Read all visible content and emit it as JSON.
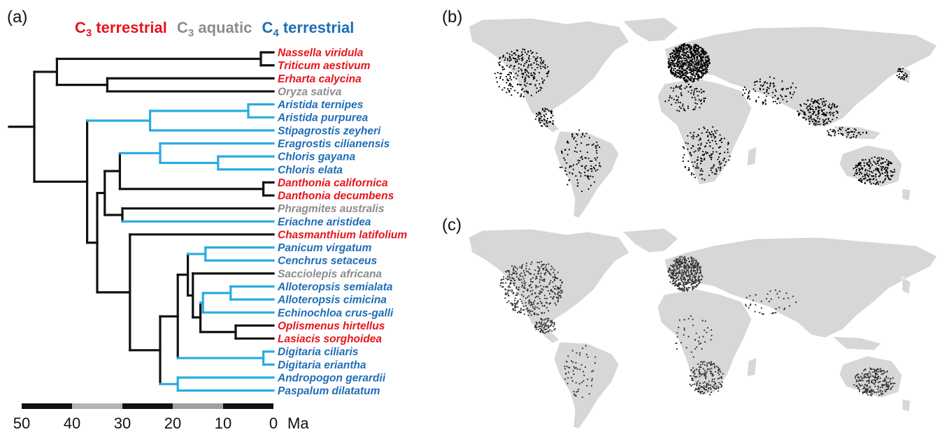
{
  "panels": {
    "a": "(a)",
    "b": "(b)",
    "c": "(c)"
  },
  "legend": {
    "c3_terrestrial": {
      "main": "C",
      "sub": "3",
      "rest": " terrestrial"
    },
    "c3_aquatic": {
      "main": "C",
      "sub": "3",
      "rest": " aquatic"
    },
    "c4_terrestrial": {
      "main": "C",
      "sub": "4",
      "rest": " terrestrial"
    }
  },
  "colors": {
    "c3_terrestrial": "#e8141c",
    "c3_aquatic": "#8c8c8c",
    "c4_terrestrial": "#1f6db7",
    "c4_branch": "#29abe2",
    "branch": "#111111",
    "land": "#d7d7d7",
    "points_b": "#000000",
    "points_c": "#333333"
  },
  "taxa": [
    {
      "name": "Nassella viridula",
      "group": "c3_terrestrial"
    },
    {
      "name": "Triticum aestivum",
      "group": "c3_terrestrial"
    },
    {
      "name": "Erharta calycina",
      "group": "c3_terrestrial"
    },
    {
      "name": "Oryza sativa",
      "group": "c3_aquatic"
    },
    {
      "name": "Aristida ternipes",
      "group": "c4_terrestrial"
    },
    {
      "name": "Aristida purpurea",
      "group": "c4_terrestrial"
    },
    {
      "name": "Stipagrostis zeyheri",
      "group": "c4_terrestrial"
    },
    {
      "name": "Eragrostis cilianensis",
      "group": "c4_terrestrial"
    },
    {
      "name": "Chloris gayana",
      "group": "c4_terrestrial"
    },
    {
      "name": "Chloris elata",
      "group": "c4_terrestrial"
    },
    {
      "name": "Danthonia californica",
      "group": "c3_terrestrial"
    },
    {
      "name": "Danthonia decumbens",
      "group": "c3_terrestrial"
    },
    {
      "name": "Phragmites australis",
      "group": "c3_aquatic"
    },
    {
      "name": "Eriachne aristidea",
      "group": "c4_terrestrial"
    },
    {
      "name": "Chasmanthium latifolium",
      "group": "c3_terrestrial"
    },
    {
      "name": "Panicum virgatum",
      "group": "c4_terrestrial"
    },
    {
      "name": "Cenchrus setaceus",
      "group": "c4_terrestrial"
    },
    {
      "name": "Sacciolepis africana",
      "group": "c3_aquatic"
    },
    {
      "name": "Alloteropsis semialata",
      "group": "c4_terrestrial"
    },
    {
      "name": "Alloteropsis cimicina",
      "group": "c4_terrestrial"
    },
    {
      "name": "Echinochloa crus-galli",
      "group": "c4_terrestrial"
    },
    {
      "name": "Oplismenus hirtellus",
      "group": "c3_terrestrial"
    },
    {
      "name": "Lasiacis sorghoidea",
      "group": "c3_terrestrial"
    },
    {
      "name": "Digitaria ciliaris",
      "group": "c4_terrestrial"
    },
    {
      "name": "Digitaria eriantha",
      "group": "c4_terrestrial"
    },
    {
      "name": "Andropogon gerardii",
      "group": "c4_terrestrial"
    },
    {
      "name": "Paspalum dilatatum",
      "group": "c4_terrestrial"
    }
  ],
  "time_axis": {
    "ticks": [
      "50",
      "40",
      "30",
      "20",
      "10",
      "0"
    ],
    "unit": "Ma",
    "range_ma": [
      50,
      0
    ]
  },
  "nodes": [
    {
      "age": 2.5,
      "children": [
        0,
        1
      ],
      "c4": false
    },
    {
      "age": 33,
      "children": [
        2,
        3
      ],
      "c4": false
    },
    {
      "age": 43,
      "children": [
        "n0",
        "n1"
      ],
      "c4": false
    },
    {
      "age": 5,
      "children": [
        4,
        5
      ],
      "c4": true
    },
    {
      "age": 24.5,
      "children": [
        "n3",
        6
      ],
      "c4": true
    },
    {
      "age": 11,
      "children": [
        8,
        9
      ],
      "c4": true
    },
    {
      "age": 22.5,
      "children": [
        7,
        "n5"
      ],
      "c4": true
    },
    {
      "age": 2,
      "children": [
        10,
        11
      ],
      "c4": false
    },
    {
      "age": 30.5,
      "children": [
        "n6",
        "n7"
      ],
      "c4": false
    },
    {
      "age": 30,
      "children": [
        12,
        13
      ],
      "c4": false
    },
    {
      "age": 33.5,
      "children": [
        "n8",
        "n9"
      ],
      "c4": false
    },
    {
      "age": 13.5,
      "children": [
        15,
        16
      ],
      "c4": true
    },
    {
      "age": 8.5,
      "children": [
        18,
        19
      ],
      "c4": true
    },
    {
      "age": 14,
      "children": [
        "n12",
        20
      ],
      "c4": true
    },
    {
      "age": 7.5,
      "children": [
        21,
        22
      ],
      "c4": false
    },
    {
      "age": 14.5,
      "children": [
        "n13",
        "n14"
      ],
      "c4": false
    },
    {
      "age": 16,
      "children": [
        17,
        "n15"
      ],
      "c4": false
    },
    {
      "age": 17,
      "children": [
        "n11",
        "n16"
      ],
      "c4": false
    },
    {
      "age": 2,
      "children": [
        23,
        24
      ],
      "c4": true
    },
    {
      "age": 19,
      "children": [
        "n17",
        "n18"
      ],
      "c4": false
    },
    {
      "age": 19,
      "children": [
        25,
        26
      ],
      "c4": true
    },
    {
      "age": 22.5,
      "children": [
        "n19",
        "n20"
      ],
      "c4": false
    },
    {
      "age": 28.5,
      "children": [
        14,
        "n21"
      ],
      "c4": false
    },
    {
      "age": 35,
      "children": [
        "n10",
        "n22"
      ],
      "c4": false
    },
    {
      "age": 37,
      "children": [
        "n4",
        "n23"
      ],
      "c4": false
    },
    {
      "age": 47.5,
      "children": [
        "n2",
        "n24"
      ],
      "c4": false
    }
  ],
  "root_stem_age": 52.5,
  "time_bar": [
    {
      "from": 50,
      "to": 40,
      "color": "#111111"
    },
    {
      "from": 40,
      "to": 30,
      "color": "#b4b4b4"
    },
    {
      "from": 30,
      "to": 20,
      "color": "#111111"
    },
    {
      "from": 20,
      "to": 10,
      "color": "#a0a0a0"
    },
    {
      "from": 10,
      "to": 0,
      "color": "#111111"
    }
  ]
}
